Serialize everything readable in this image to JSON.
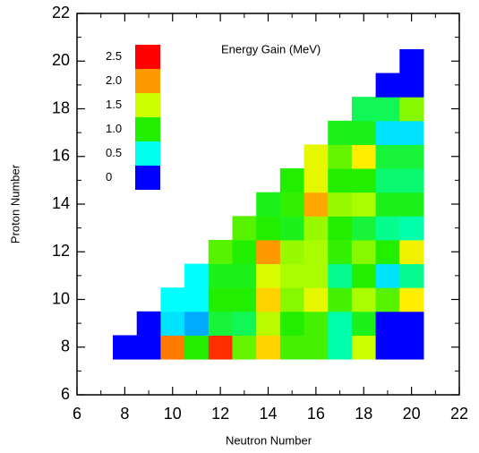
{
  "chart_data": {
    "type": "heatmap",
    "xlabel": "Neutron Number",
    "ylabel": "Proton Number",
    "colorbar_label": "Energy Gain (MeV)",
    "x": [
      8,
      9,
      10,
      11,
      12,
      13,
      14,
      15,
      16,
      17,
      18,
      19,
      20
    ],
    "y": [
      8,
      9,
      10,
      11,
      12,
      13,
      14,
      15,
      16,
      17,
      18,
      19,
      20
    ],
    "z": [
      [
        0,
        0,
        2.1,
        1.0,
        2.35,
        1.2,
        1.8,
        1.1,
        1.1,
        0.7,
        1.5,
        0,
        0
      ],
      [
        null,
        0,
        0.4,
        0.3,
        0.9,
        0.85,
        1.45,
        1.0,
        1.1,
        0.7,
        0.95,
        0,
        0
      ],
      [
        null,
        null,
        0.45,
        0.45,
        1.0,
        1.0,
        1.8,
        1.3,
        1.6,
        1.1,
        1.4,
        1.15,
        1.7
      ],
      [
        null,
        null,
        null,
        0.45,
        0.95,
        0.95,
        1.55,
        1.4,
        1.4,
        0.75,
        1.0,
        0.4,
        0.75
      ],
      [
        null,
        null,
        null,
        null,
        1.15,
        1.0,
        2.0,
        1.35,
        1.4,
        1.05,
        1.3,
        1.0,
        1.65
      ],
      [
        null,
        null,
        null,
        null,
        null,
        1.15,
        1.0,
        0.95,
        1.35,
        1.0,
        0.9,
        0.75,
        0.7
      ],
      [
        null,
        null,
        null,
        null,
        null,
        null,
        0.95,
        1.05,
        1.95,
        1.35,
        1.4,
        0.95,
        0.95
      ],
      [
        null,
        null,
        null,
        null,
        null,
        null,
        null,
        1.0,
        1.6,
        1.0,
        1.0,
        0.8,
        0.8
      ],
      [
        null,
        null,
        null,
        null,
        null,
        null,
        null,
        null,
        1.6,
        1.2,
        1.7,
        0.9,
        0.9
      ],
      [
        null,
        null,
        null,
        null,
        null,
        null,
        null,
        null,
        null,
        0.95,
        0.95,
        0.4,
        0.4
      ],
      [
        null,
        null,
        null,
        null,
        null,
        null,
        null,
        null,
        null,
        null,
        0.85,
        0.85,
        1.3
      ],
      [
        null,
        null,
        null,
        null,
        null,
        null,
        null,
        null,
        null,
        null,
        null,
        0,
        0
      ],
      [
        null,
        null,
        null,
        null,
        null,
        null,
        null,
        null,
        null,
        null,
        null,
        null,
        0
      ]
    ],
    "colorscale": [
      [
        0,
        "#0000ff"
      ],
      [
        0.3,
        "#00aaff"
      ],
      [
        0.45,
        "#00ffff"
      ],
      [
        0.7,
        "#00ffaa"
      ],
      [
        1.0,
        "#22ee00"
      ],
      [
        1.5,
        "#ccff00"
      ],
      [
        1.7,
        "#ffee00"
      ],
      [
        2.0,
        "#ff9900"
      ],
      [
        2.5,
        "#ff0000"
      ]
    ],
    "colorbar_ticks": [
      0,
      0.5,
      {
        "value": 1,
        "label": "1.0"
      },
      1.5,
      {
        "value": 2,
        "label": "2.0"
      },
      2.5
    ],
    "xlim": [
      6,
      22
    ],
    "xticks": [
      6,
      8,
      10,
      12,
      14,
      16,
      18,
      20,
      22
    ],
    "ylim": [
      6,
      22
    ],
    "yticks": [
      6,
      8,
      10,
      12,
      14,
      16,
      18,
      20,
      22
    ]
  }
}
